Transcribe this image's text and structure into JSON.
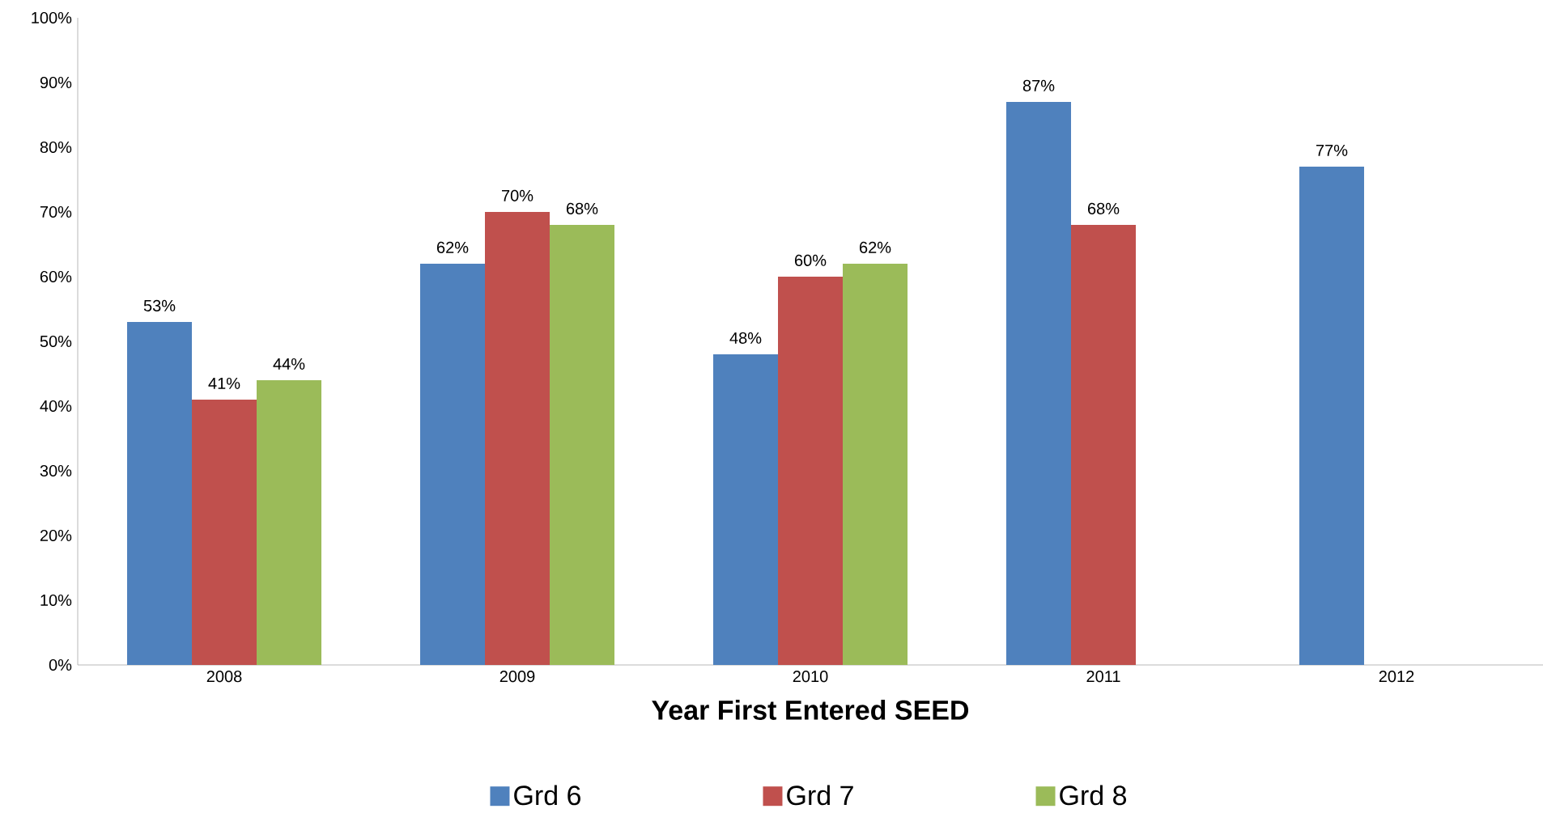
{
  "chart_data": {
    "type": "bar",
    "xlabel": "Year First Entered SEED",
    "categories": [
      "2008",
      "2009",
      "2010",
      "2011",
      "2012"
    ],
    "series": [
      {
        "name": "Grd 6",
        "color": "#4f81bd",
        "values": [
          53,
          62,
          48,
          87,
          77
        ],
        "value_labels": [
          "53%",
          "62%",
          "48%",
          "87%",
          "77%"
        ]
      },
      {
        "name": "Grd 7",
        "color": "#c0504d",
        "values": [
          41,
          70,
          60,
          68,
          null
        ],
        "value_labels": [
          "41%",
          "70%",
          "60%",
          "68%",
          null
        ]
      },
      {
        "name": "Grd 8",
        "color": "#9bbb59",
        "values": [
          44,
          68,
          62,
          null,
          null
        ],
        "value_labels": [
          "44%",
          "68%",
          "62%",
          null,
          null
        ]
      }
    ],
    "ylim": [
      0,
      100
    ],
    "yticks": [
      {
        "value": 0,
        "label": "0%"
      },
      {
        "value": 10,
        "label": "10%"
      },
      {
        "value": 20,
        "label": "20%"
      },
      {
        "value": 30,
        "label": "30%"
      },
      {
        "value": 40,
        "label": "40%"
      },
      {
        "value": 50,
        "label": "50%"
      },
      {
        "value": 60,
        "label": "60%"
      },
      {
        "value": 70,
        "label": "70%"
      },
      {
        "value": 80,
        "label": "80%"
      },
      {
        "value": 90,
        "label": "90%"
      },
      {
        "value": 100,
        "label": "100%"
      }
    ],
    "grid": false,
    "legend": "bottom"
  }
}
